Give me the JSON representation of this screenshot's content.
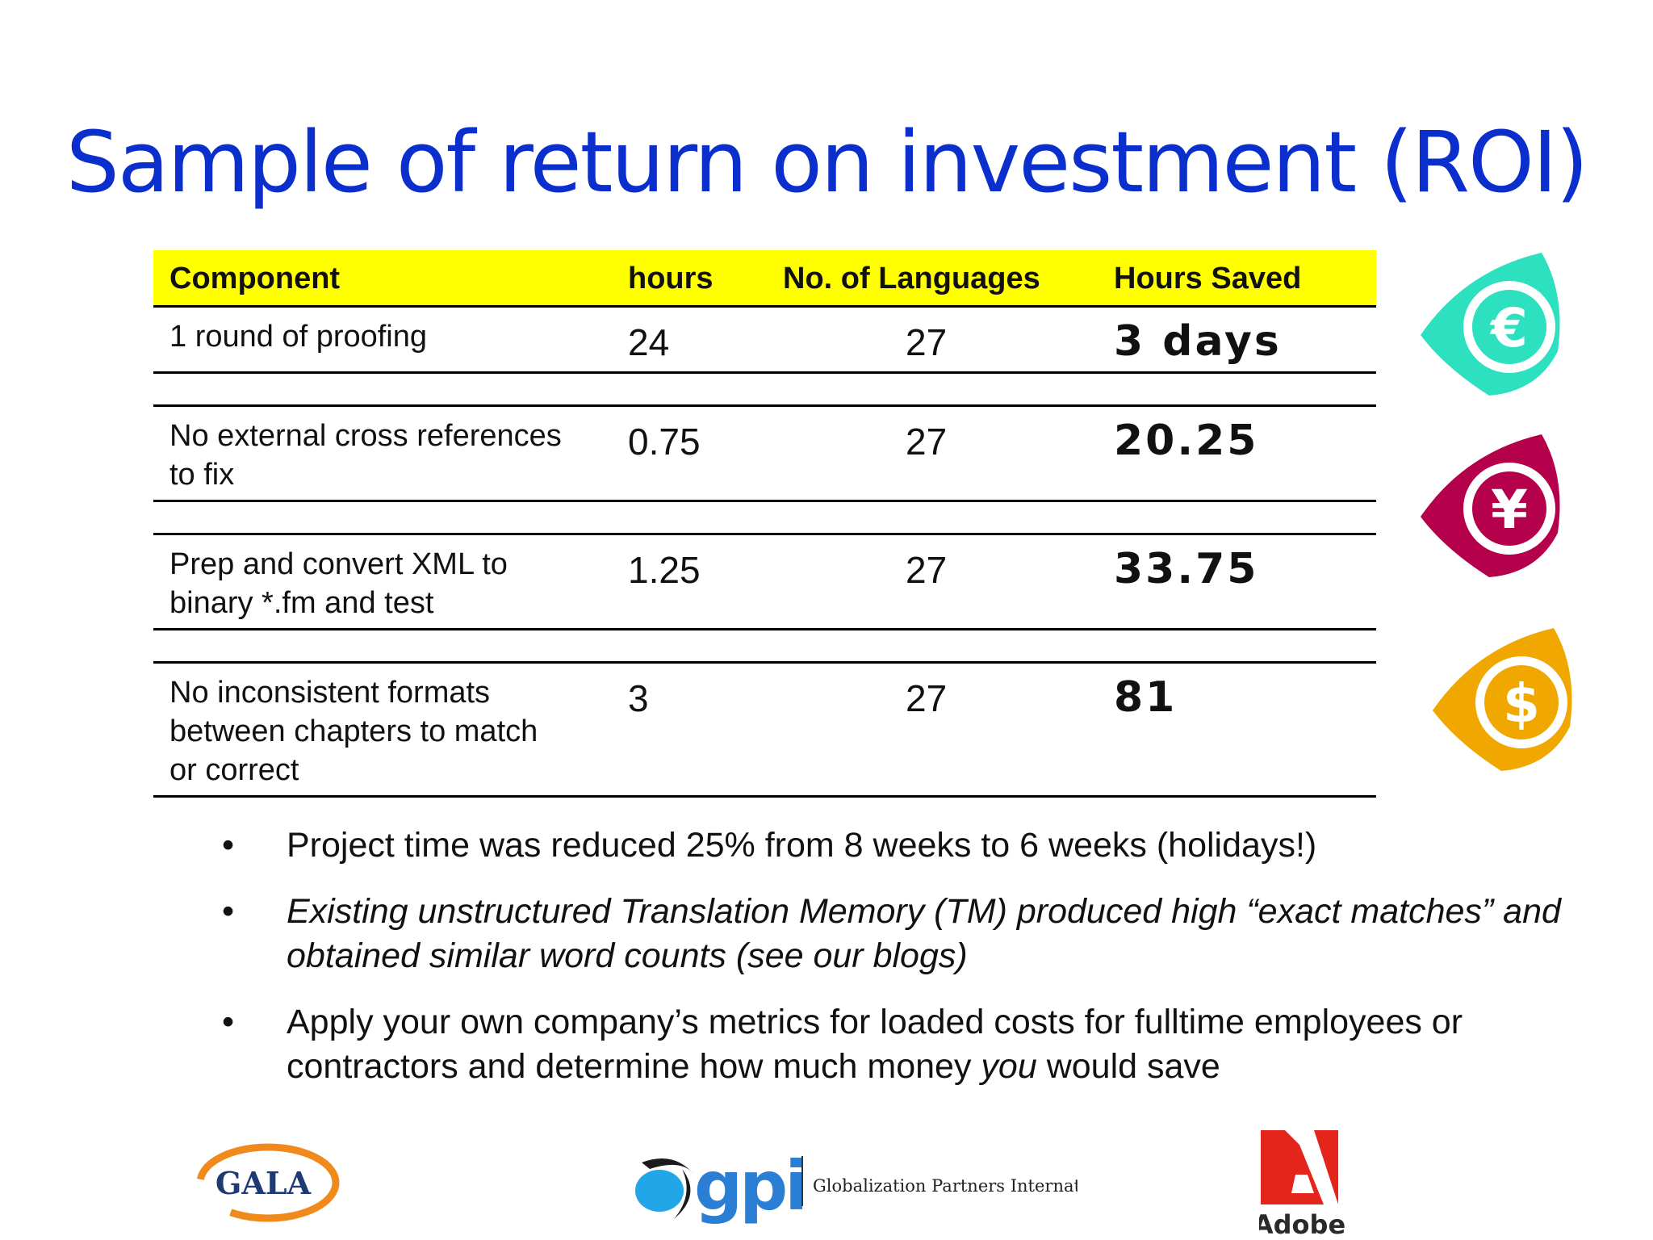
{
  "title": "Sample of return on investment (ROI)",
  "table": {
    "headers": [
      "Component",
      "hours",
      "No. of Languages",
      "Hours Saved"
    ],
    "rows": [
      {
        "component_lines": [
          "1 round of proofing"
        ],
        "hours": "24",
        "languages": "27",
        "saved": "3 days"
      },
      {
        "component_lines": [
          "No external cross references",
          "to fix"
        ],
        "hours": "0.75",
        "languages": "27",
        "saved": "20.25"
      },
      {
        "component_lines": [
          "Prep and convert XML to",
          "binary *.fm and test"
        ],
        "hours": "1.25",
        "languages": "27",
        "saved": "33.75"
      },
      {
        "component_lines": [
          "No inconsistent formats",
          "between chapters to match",
          "or correct"
        ],
        "hours": "3",
        "languages": "27",
        "saved": "81"
      }
    ]
  },
  "bullets": [
    {
      "dot": "•",
      "text": "Project time was reduced 25% from 8 weeks to 6 weeks (holidays!)"
    },
    {
      "dot": "•",
      "text": "Existing unstructured Translation Memory (TM) produced high “exact matches” and obtained similar word counts (see our blogs)"
    },
    {
      "dot": "•",
      "before": "Apply your own company’s metrics for  loaded costs for fulltime employees or contractors and determine how much money ",
      "em": "you",
      "after": " would save"
    }
  ],
  "icons": [
    {
      "name": "euro-icon",
      "symbol": "€",
      "color": "#2de0bf"
    },
    {
      "name": "yen-icon",
      "symbol": "¥",
      "color": "#b5004b"
    },
    {
      "name": "dollar-icon",
      "symbol": "$",
      "color": "#f0a800"
    }
  ],
  "logos": {
    "gala": "GALA",
    "gpi": "gpi",
    "gpi_tagline": "Globalization Partners International",
    "adobe": "Adobe"
  },
  "colors": {
    "title": "#0a2fcc",
    "header_bg": "#ffff00"
  }
}
